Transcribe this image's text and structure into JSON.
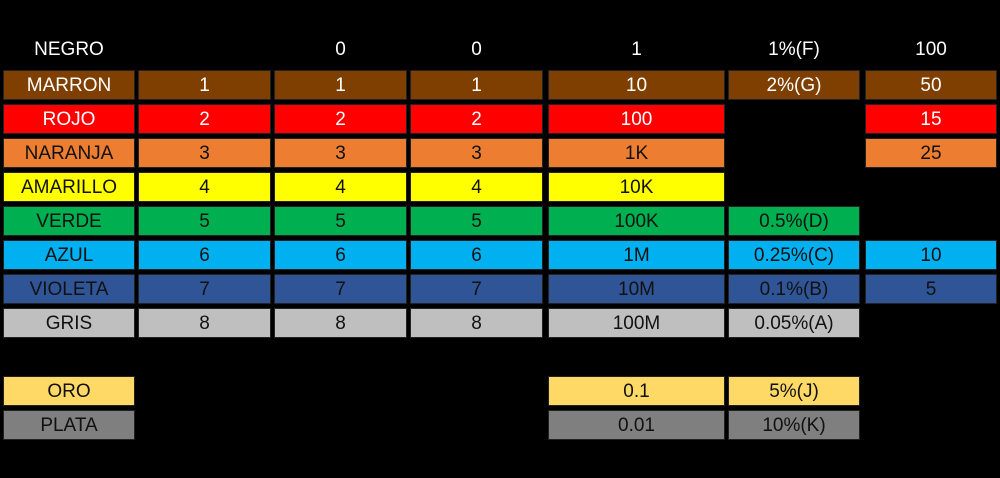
{
  "header": {
    "name": "NEGRO",
    "d1": "",
    "d2": "0",
    "d3": "0",
    "mult": "1",
    "tol": "1%(F)",
    "tc": "100"
  },
  "rows": [
    {
      "name": "MARRON",
      "d1": "1",
      "d2": "1",
      "d3": "1",
      "mult": "10",
      "tol": "2%(G)",
      "tc": "50",
      "bg": "#7F3F00",
      "fg": "#ffffff"
    },
    {
      "name": "ROJO",
      "d1": "2",
      "d2": "2",
      "d3": "2",
      "mult": "100",
      "tol": "",
      "tc": "15",
      "bg": "#FF0000",
      "fg": "#ffffff"
    },
    {
      "name": "NARANJA",
      "d1": "3",
      "d2": "3",
      "d3": "3",
      "mult": "1K",
      "tol": "",
      "tc": "25",
      "bg": "#ED7D31",
      "fg": "#111111"
    },
    {
      "name": "AMARILLO",
      "d1": "4",
      "d2": "4",
      "d3": "4",
      "mult": "10K",
      "tol": "",
      "tc": "",
      "bg": "#FFFF00",
      "fg": "#111111"
    },
    {
      "name": "VERDE",
      "d1": "5",
      "d2": "5",
      "d3": "5",
      "mult": "100K",
      "tol": "0.5%(D)",
      "tc": "",
      "bg": "#00B050",
      "fg": "#111111"
    },
    {
      "name": "AZUL",
      "d1": "6",
      "d2": "6",
      "d3": "6",
      "mult": "1M",
      "tol": "0.25%(C)",
      "tc": "10",
      "bg": "#00B0F0",
      "fg": "#111111"
    },
    {
      "name": "VIOLETA",
      "d1": "7",
      "d2": "7",
      "d3": "7",
      "mult": "10M",
      "tol": "0.1%(B)",
      "tc": "5",
      "bg": "#2F5597",
      "fg": "#111111"
    },
    {
      "name": "GRIS",
      "d1": "8",
      "d2": "8",
      "d3": "8",
      "mult": "100M",
      "tol": "0.05%(A)",
      "tc": "",
      "bg": "#BFBFBF",
      "fg": "#111111"
    }
  ],
  "extra_rows": [
    {
      "name": "ORO",
      "mult": "0.1",
      "tol": "5%(J)",
      "bg": "#FFD966",
      "fg": "#111111"
    },
    {
      "name": "PLATA",
      "mult": "0.01",
      "tol": "10%(K)",
      "bg": "#7F7F7F",
      "fg": "#111111"
    }
  ]
}
